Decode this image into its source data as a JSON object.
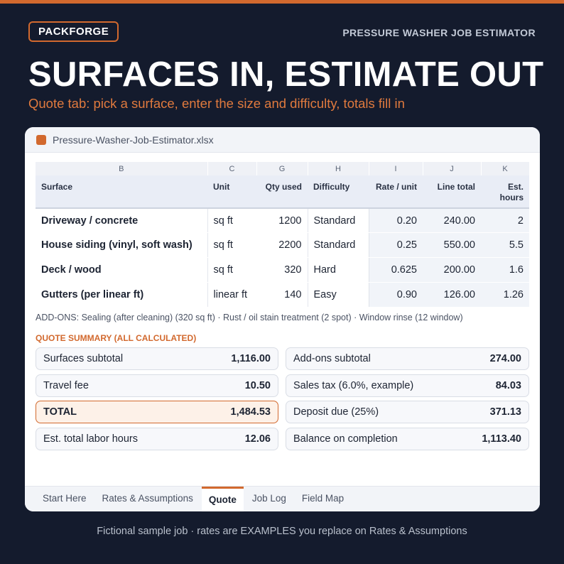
{
  "brand": "PACKFORGE",
  "app_title": "PRESSURE WASHER JOB ESTIMATOR",
  "headline": "SURFACES IN, ESTIMATE OUT",
  "subhead": "Quote tab: pick a surface, enter the size and difficulty, totals fill in",
  "window": {
    "file_name": "Pressure-Washer-Job-Estimator.xlsx",
    "column_letters": [
      "B",
      "C",
      "G",
      "H",
      "I",
      "J",
      "K"
    ],
    "headers": {
      "surface": "Surface",
      "unit": "Unit",
      "qty": "Qty used",
      "difficulty": "Difficulty",
      "rate": "Rate / unit",
      "line_total": "Line total",
      "hours_line1": "Est.",
      "hours_line2": "hours"
    },
    "rows": [
      {
        "surface": "Driveway / concrete",
        "unit": "sq ft",
        "qty": "1200",
        "difficulty": "Standard",
        "rate": "0.20",
        "line_total": "240.00",
        "hours": "2"
      },
      {
        "surface": "House siding (vinyl, soft wash)",
        "unit": "sq ft",
        "qty": "2200",
        "difficulty": "Standard",
        "rate": "0.25",
        "line_total": "550.00",
        "hours": "5.5"
      },
      {
        "surface": "Deck / wood",
        "unit": "sq ft",
        "qty": "320",
        "difficulty": "Hard",
        "rate": "0.625",
        "line_total": "200.00",
        "hours": "1.6"
      },
      {
        "surface": "Gutters (per linear ft)",
        "unit": "linear ft",
        "qty": "140",
        "difficulty": "Easy",
        "rate": "0.90",
        "line_total": "126.00",
        "hours": "1.26"
      }
    ],
    "addons": "ADD-ONS: Sealing (after cleaning) (320 sq ft) · Rust / oil stain treatment (2 spot) · Window rinse (12 window)",
    "summary_label": "QUOTE SUMMARY (ALL CALCULATED)",
    "summary": {
      "surfaces_subtotal": {
        "label": "Surfaces subtotal",
        "value": "1,116.00"
      },
      "addons_subtotal": {
        "label": "Add-ons subtotal",
        "value": "274.00"
      },
      "travel_fee": {
        "label": "Travel fee",
        "value": "10.50"
      },
      "sales_tax": {
        "label": "Sales tax (6.0%, example)",
        "value": "84.03"
      },
      "total": {
        "label": "TOTAL",
        "value": "1,484.53"
      },
      "deposit": {
        "label": "Deposit due (25%)",
        "value": "371.13"
      },
      "labor_hours": {
        "label": "Est. total labor hours",
        "value": "12.06"
      },
      "balance": {
        "label": "Balance on completion",
        "value": "1,113.40"
      }
    },
    "tabs": [
      "Start Here",
      "Rates & Assumptions",
      "Quote",
      "Job Log",
      "Field Map"
    ],
    "active_tab": "Quote"
  },
  "footer": "Fictional sample job · rates are EXAMPLES you replace on Rates & Assumptions",
  "colors": {
    "accent": "#d2692e",
    "background": "#141b2d",
    "total_bg": "#fdf1e8"
  }
}
